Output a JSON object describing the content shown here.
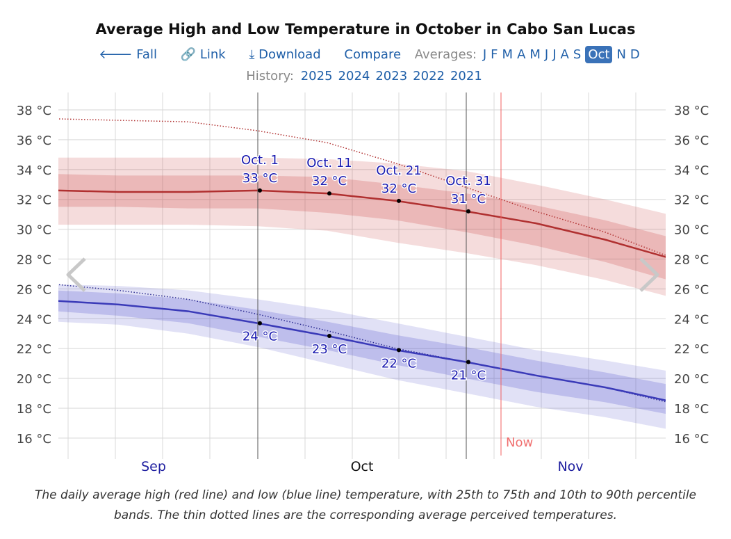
{
  "header": {
    "title": "Average High and Low Temperature in October in Cabo San Lucas"
  },
  "nav": {
    "back_label": "Fall",
    "link_label": "Link",
    "download_label": "Download",
    "compare_label": "Compare",
    "averages_label": "Averages:",
    "months": [
      "J",
      "F",
      "M",
      "A",
      "M",
      "J",
      "J",
      "A",
      "S",
      "Oct",
      "N",
      "D"
    ],
    "active_month": "Oct",
    "history_label": "History:",
    "years": [
      "2025",
      "2024",
      "2023",
      "2022",
      "2021"
    ],
    "icons": {
      "back": "arrow-left-icon",
      "link": "link-icon",
      "download": "download-icon",
      "prev": "chevron-left-icon",
      "next": "chevron-right-icon"
    }
  },
  "chart_data": {
    "type": "line",
    "yunit": "°C",
    "ylim": [
      15,
      39
    ],
    "yticks": [
      16,
      18,
      20,
      22,
      24,
      26,
      28,
      30,
      32,
      34,
      36,
      38
    ],
    "ytick_labels": [
      "16 °C",
      "18 °C",
      "20 °C",
      "22 °C",
      "24 °C",
      "26 °C",
      "28 °C",
      "30 °C",
      "32 °C",
      "34 °C",
      "36 °C",
      "38 °C"
    ],
    "xlim": [
      "Sep 2",
      "Nov 29"
    ],
    "x": [
      "Sep 2",
      "Sep 11",
      "Sep 21",
      "Oct 1",
      "Oct 11",
      "Oct 21",
      "Oct 31",
      "Nov 10",
      "Nov 20",
      "Nov 29"
    ],
    "month_labels": [
      {
        "label": "Sep",
        "x": "Sep 16"
      },
      {
        "label": "Oct",
        "x": "Oct 16"
      },
      {
        "label": "Nov",
        "x": "Nov 15"
      }
    ],
    "highlight_month": "Oct",
    "now": {
      "label": "Now",
      "x": "Nov 5"
    },
    "grid": true,
    "high": {
      "color": "#b03030",
      "mean": [
        32.6,
        32.5,
        32.5,
        32.6,
        32.4,
        31.9,
        31.2,
        30.4,
        29.3,
        28.1
      ],
      "p25": [
        31.5,
        31.5,
        31.4,
        31.4,
        31.1,
        30.6,
        29.8,
        28.9,
        27.8,
        26.6
      ],
      "p75": [
        33.7,
        33.6,
        33.6,
        33.6,
        33.5,
        33.0,
        32.4,
        31.6,
        30.6,
        29.5
      ],
      "p10": [
        30.3,
        30.3,
        30.3,
        30.2,
        29.9,
        29.1,
        28.4,
        27.6,
        26.6,
        25.5
      ],
      "p90": [
        34.8,
        34.8,
        34.8,
        34.8,
        34.7,
        34.4,
        33.9,
        33.0,
        32.0,
        31.0
      ],
      "feels_like": [
        37.4,
        37.3,
        37.2,
        36.6,
        35.8,
        34.4,
        32.8,
        31.2,
        29.8,
        28.2
      ]
    },
    "low": {
      "color": "#3a3ab8",
      "mean": [
        25.2,
        24.95,
        24.5,
        23.7,
        22.85,
        21.9,
        21.1,
        20.2,
        19.4,
        18.5
      ],
      "p25": [
        24.5,
        24.2,
        23.7,
        22.8,
        21.9,
        20.9,
        20.0,
        19.1,
        18.4,
        17.6
      ],
      "p75": [
        25.9,
        25.7,
        25.3,
        24.6,
        23.8,
        22.9,
        22.1,
        21.2,
        20.4,
        19.6
      ],
      "p10": [
        23.8,
        23.6,
        23.0,
        22.1,
        21.0,
        19.9,
        19.0,
        18.1,
        17.4,
        16.6
      ],
      "p90": [
        26.3,
        26.2,
        25.9,
        25.3,
        24.6,
        23.7,
        22.8,
        21.9,
        21.2,
        20.5
      ],
      "feels_like": [
        26.3,
        25.9,
        25.3,
        24.3,
        23.2,
        22.0,
        21.1,
        20.2,
        19.4,
        18.4
      ]
    },
    "annotations": [
      {
        "date": "Oct 1",
        "label": "Oct. 1",
        "high": "33 °C",
        "low": "24 °C"
      },
      {
        "date": "Oct 11",
        "label": "Oct. 11",
        "high": "32 °C",
        "low": "23 °C"
      },
      {
        "date": "Oct 21",
        "label": "Oct. 21",
        "high": "32 °C",
        "low": "22 °C"
      },
      {
        "date": "Oct 31",
        "label": "Oct. 31",
        "high": "31 °C",
        "low": "21 °C"
      }
    ]
  },
  "caption": "The daily average high (red line) and low (blue line) temperature, with 25th to 75th and 10th to 90th percentile bands. The thin dotted lines are the corresponding average perceived temperatures."
}
